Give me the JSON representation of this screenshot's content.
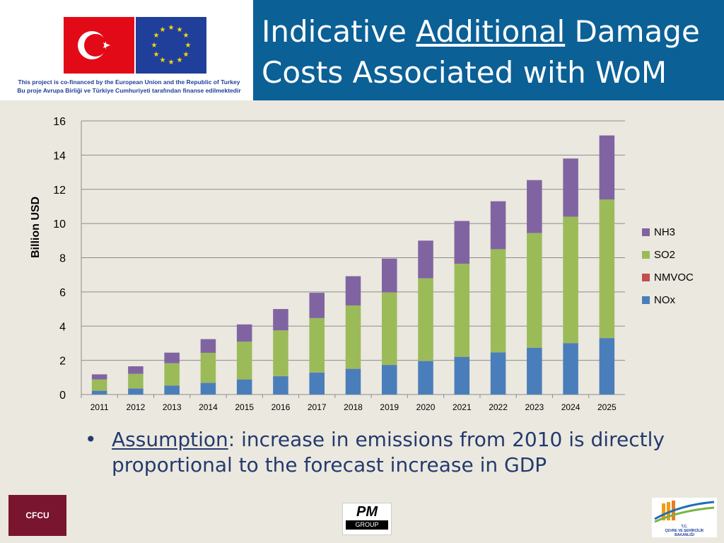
{
  "header": {
    "title_part1": "Indicative ",
    "title_underlined": "Additional",
    "title_part2": " Damage Costs Associated with WoM",
    "cofinance_line1": "This project is co-financed by the European Union and the Republic of Turkey",
    "cofinance_line2": "Bu proje Avrupa Birliği ve Türkiye Cumhuriyeti tarafından finanse edilmektedir"
  },
  "chart_data": {
    "type": "bar",
    "stacked": true,
    "title": "",
    "xlabel": "",
    "ylabel": "Billion USD",
    "ylim": [
      0,
      16
    ],
    "yticks": [
      0,
      2,
      4,
      6,
      8,
      10,
      12,
      14,
      16
    ],
    "grid": true,
    "legend_position": "right",
    "categories": [
      "2011",
      "2012",
      "2013",
      "2014",
      "2015",
      "2016",
      "2017",
      "2018",
      "2019",
      "2020",
      "2021",
      "2022",
      "2023",
      "2024",
      "2025"
    ],
    "series": [
      {
        "name": "NOx",
        "color": "#4a7ebb",
        "values": [
          0.22,
          0.35,
          0.52,
          0.68,
          0.88,
          1.07,
          1.28,
          1.5,
          1.73,
          1.96,
          2.2,
          2.46,
          2.73,
          3.0,
          3.3
        ]
      },
      {
        "name": "NMVOC",
        "color": "#c0504d",
        "values": [
          0.01,
          0.01,
          0.01,
          0.01,
          0.01,
          0.01,
          0.01,
          0.01,
          0.01,
          0.01,
          0.01,
          0.01,
          0.01,
          0.01,
          0.01
        ]
      },
      {
        "name": "SO2",
        "color": "#9bbb59",
        "values": [
          0.65,
          0.85,
          1.3,
          1.75,
          2.2,
          2.67,
          3.18,
          3.7,
          4.23,
          4.83,
          5.44,
          6.03,
          6.7,
          7.39,
          8.09
        ]
      },
      {
        "name": "NH3",
        "color": "#8064a2",
        "values": [
          0.3,
          0.44,
          0.62,
          0.8,
          1.01,
          1.25,
          1.48,
          1.71,
          1.98,
          2.2,
          2.5,
          2.8,
          3.1,
          3.4,
          3.75
        ]
      }
    ]
  },
  "bullet": {
    "term": "Assumption",
    "text": ": increase in emissions from 2010 is directly proportional to the forecast increase in GDP"
  },
  "logos": {
    "cfcu": "CFCU",
    "pm_main": "PM",
    "pm_sub": "GROUP",
    "ministry_line1": "T.C.",
    "ministry_line2": "ÇEVRE VE ŞEHİRCİLİK",
    "ministry_line3": "BAKANLIĞI"
  }
}
